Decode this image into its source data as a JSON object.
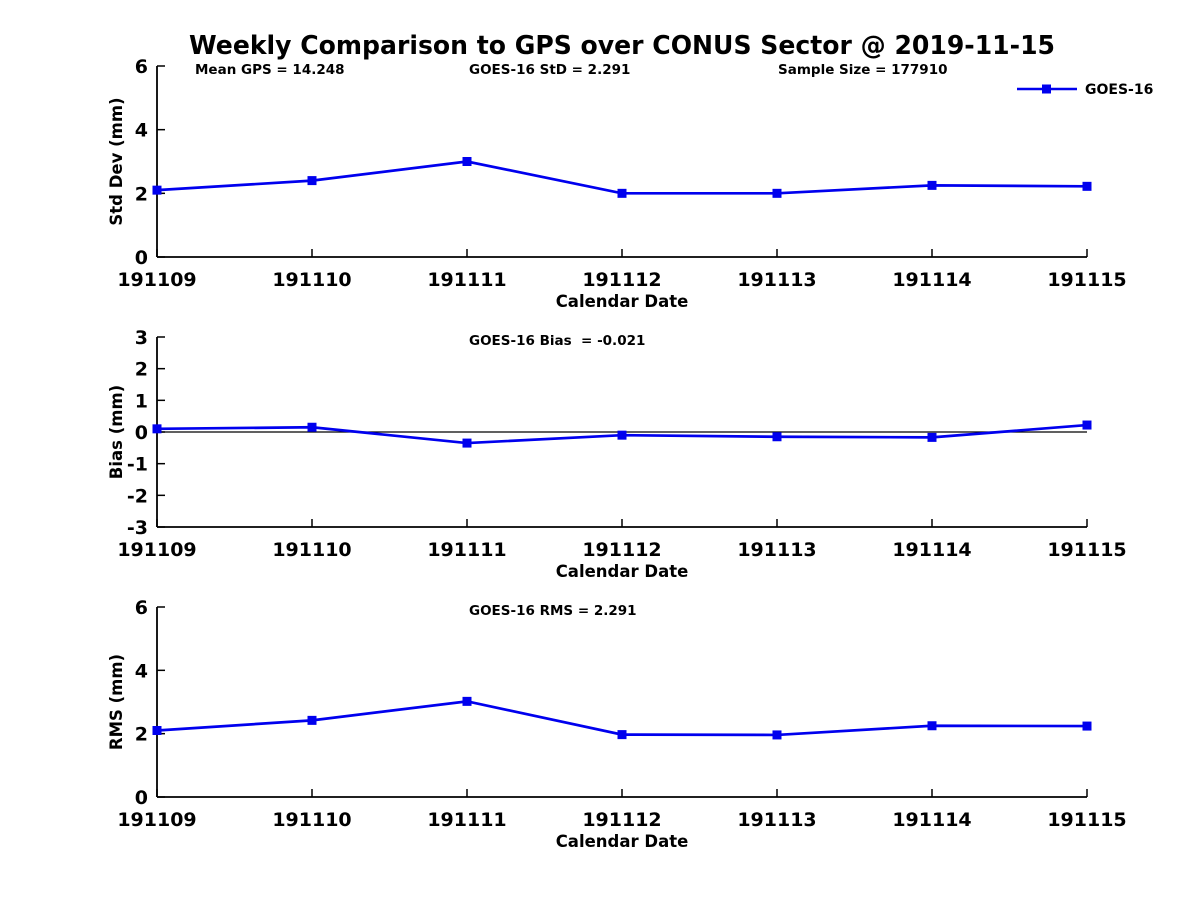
{
  "title": "Weekly Comparison to GPS over CONUS Sector @ 2019-11-15",
  "legend": {
    "label": "GOES-16",
    "position": "top-right",
    "marker": "filled-square"
  },
  "xlabel": "Calendar Date",
  "categories": [
    "191109",
    "191110",
    "191111",
    "191112",
    "191113",
    "191114",
    "191115"
  ],
  "colors": {
    "line": "#0000EE",
    "axis": "#000000",
    "text": "#000000",
    "background": "#FFFFFF"
  },
  "chart_data": [
    {
      "type": "line",
      "name": "std-dev",
      "annotations": [
        "Mean GPS = 14.248",
        "GOES-16 StD = 2.291",
        "Sample Size = 177910"
      ],
      "ylabel": "Std Dev (mm)",
      "xlabel": "Calendar Date",
      "ylim": [
        0,
        6
      ],
      "yticks": [
        0,
        2,
        4,
        6
      ],
      "grid": false,
      "zero_line": false,
      "legend_visible": true,
      "series": [
        {
          "name": "GOES-16",
          "values": [
            2.1,
            2.4,
            3.0,
            2.0,
            2.0,
            2.25,
            2.22
          ]
        }
      ]
    },
    {
      "type": "line",
      "name": "bias",
      "annotations": [
        "GOES-16 Bias  = -0.021"
      ],
      "ylabel": "Bias (mm)",
      "xlabel": "Calendar Date",
      "ylim": [
        -3,
        3
      ],
      "yticks": [
        -3,
        -2,
        -1,
        0,
        1,
        2,
        3
      ],
      "grid": false,
      "zero_line": true,
      "legend_visible": false,
      "series": [
        {
          "name": "GOES-16",
          "values": [
            0.1,
            0.15,
            -0.35,
            -0.1,
            -0.15,
            -0.17,
            0.22
          ]
        }
      ]
    },
    {
      "type": "line",
      "name": "rms",
      "annotations": [
        "GOES-16 RMS = 2.291"
      ],
      "ylabel": "RMS (mm)",
      "xlabel": "Calendar Date",
      "ylim": [
        0,
        6
      ],
      "yticks": [
        0,
        2,
        4,
        6
      ],
      "grid": false,
      "zero_line": false,
      "legend_visible": false,
      "series": [
        {
          "name": "GOES-16",
          "values": [
            2.1,
            2.42,
            3.02,
            1.97,
            1.96,
            2.25,
            2.24
          ]
        }
      ]
    }
  ]
}
